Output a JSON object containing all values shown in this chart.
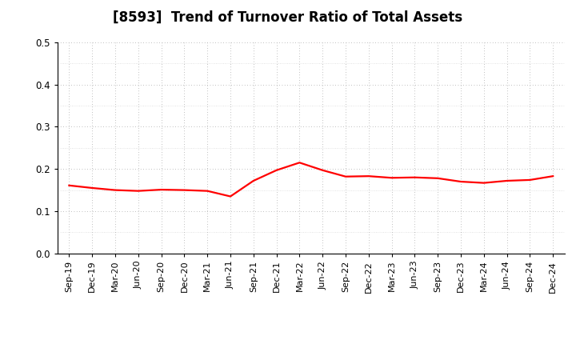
{
  "title": "[8593]  Trend of Turnover Ratio of Total Assets",
  "labels": [
    "Sep-19",
    "Dec-19",
    "Mar-20",
    "Jun-20",
    "Sep-20",
    "Dec-20",
    "Mar-21",
    "Jun-21",
    "Sep-21",
    "Dec-21",
    "Mar-22",
    "Jun-22",
    "Sep-22",
    "Dec-22",
    "Mar-23",
    "Jun-23",
    "Sep-23",
    "Dec-23",
    "Mar-24",
    "Jun-24",
    "Sep-24",
    "Dec-24"
  ],
  "values": [
    0.161,
    0.155,
    0.15,
    0.148,
    0.151,
    0.15,
    0.148,
    0.135,
    0.172,
    0.197,
    0.215,
    0.197,
    0.182,
    0.183,
    0.179,
    0.18,
    0.178,
    0.17,
    0.167,
    0.172,
    0.174,
    0.183
  ],
  "line_color": "#FF0000",
  "line_width": 1.6,
  "ylim": [
    0.0,
    0.5
  ],
  "yticks": [
    0.0,
    0.1,
    0.2,
    0.3,
    0.4,
    0.5
  ],
  "background_color": "#FFFFFF",
  "grid_color": "#AAAAAA",
  "title_fontsize": 12,
  "tick_fontsize": 8.0
}
